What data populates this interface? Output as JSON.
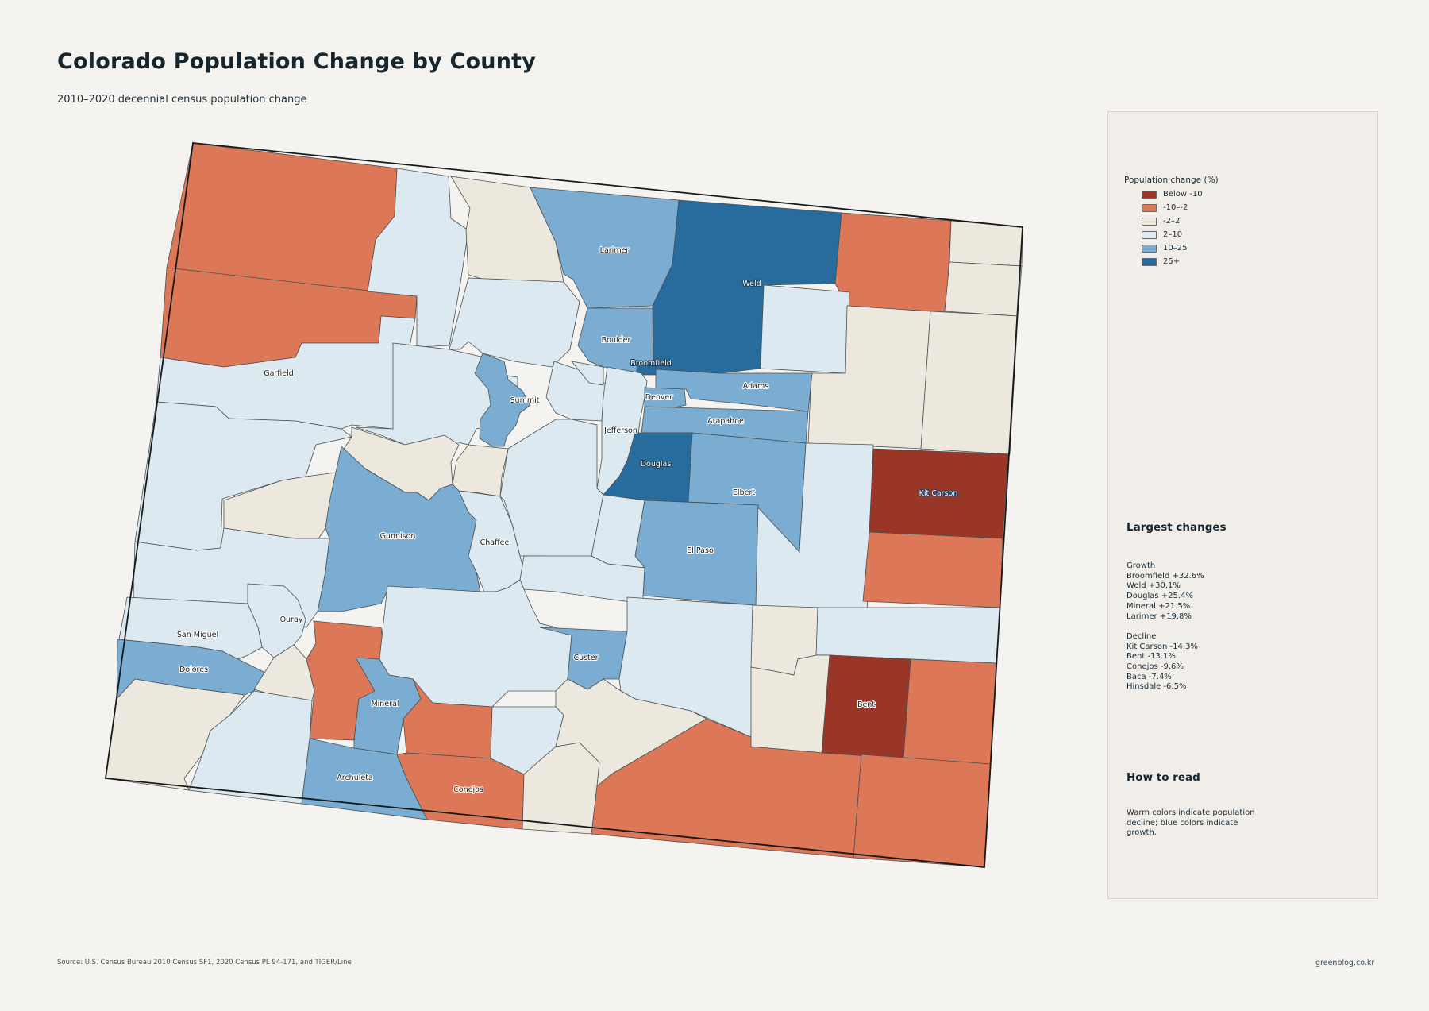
{
  "title": "Colorado Population Change by County",
  "subtitle": "2010–2020 decennial census population change",
  "palette": {
    "below_-10": "#9a3628",
    "-10_-2": "#dc7857",
    "-2_2": "#ede8dd",
    "2_10": "#dce9f1",
    "10_25": "#7aadd1",
    "25_plus": "#286c9e"
  },
  "legend": {
    "title": "Population change (%)",
    "items": [
      {
        "label": "Below -10",
        "color": "#9a3628"
      },
      {
        "label": "-10–-2",
        "color": "#dc7857"
      },
      {
        "label": "-2–2",
        "color": "#ede8dd"
      },
      {
        "label": "2–10",
        "color": "#dce9f1"
      },
      {
        "label": "10–25",
        "color": "#7aadd1"
      },
      {
        "label": "25+",
        "color": "#286c9e"
      }
    ]
  },
  "counties": {
    "garfield": "Garfield",
    "summit": "Summit",
    "larimer": "Larimer",
    "weld": "Weld",
    "boulder": "Boulder",
    "broomfield": "Broomfield",
    "adams": "Adams",
    "denver": "Denver",
    "arapahoe": "Arapahoe",
    "jefferson": "Jefferson",
    "douglas": "Douglas",
    "elbert": "Elbert",
    "kit_carson": "Kit Carson",
    "gunnison": "Gunnison",
    "chaffee": "Chaffee",
    "el_paso": "El Paso",
    "ouray": "Ouray",
    "san_miguel": "San Miguel",
    "dolores": "Dolores",
    "custer": "Custer",
    "mineral": "Mineral",
    "bent": "Bent",
    "archuleta": "Archuleta",
    "conejos": "Conejos"
  },
  "largest_changes": {
    "heading": "Largest changes",
    "growth_label": "Growth",
    "growth": [
      "Broomfield  +32.6%",
      "Weld  +30.1%",
      "Douglas  +25.4%",
      "Mineral  +21.5%",
      "Larimer  +19.8%"
    ],
    "decline_label": "Decline",
    "decline": [
      "Kit Carson  -14.3%",
      "Bent  -13.1%",
      "Conejos  -9.6%",
      "Baca  -7.4%",
      "Hinsdale  -6.5%"
    ]
  },
  "how_to_read": {
    "heading": "How to read",
    "body": "Warm colors indicate population decline; blue colors indicate growth."
  },
  "source": "Source: U.S. Census Bureau 2010 Census SF1, 2020 Census PL 94-171, and TIGER/Line",
  "credit": "greenblog.co.kr"
}
